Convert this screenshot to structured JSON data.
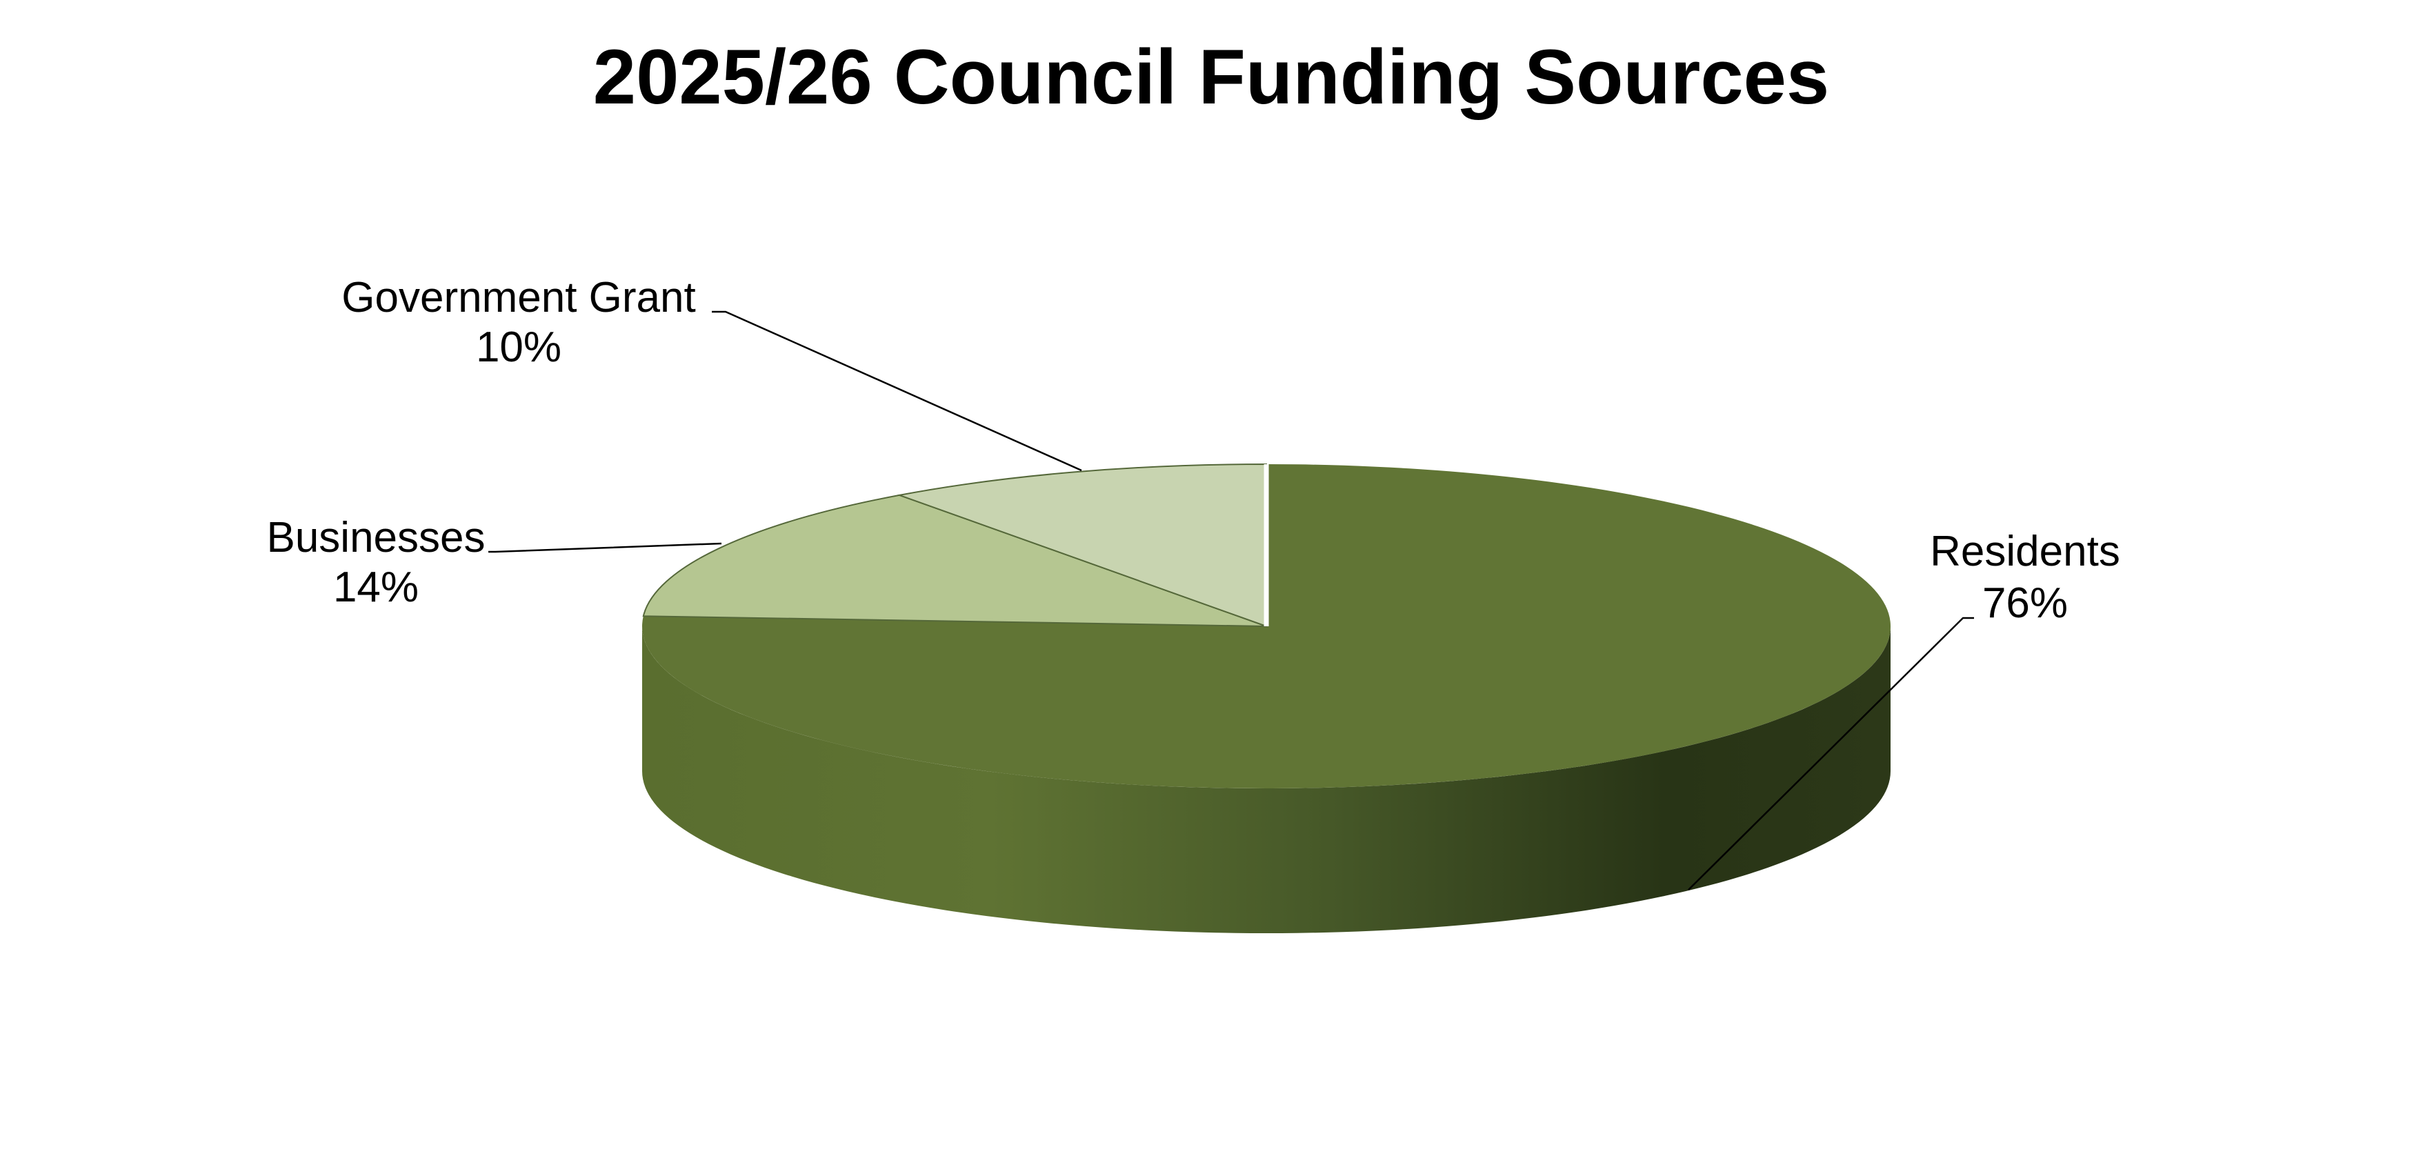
{
  "chart_data": {
    "type": "pie",
    "title": "2025/26 Council Funding Sources",
    "style": "3d",
    "slices": [
      {
        "label": "Residents",
        "value": 76,
        "value_label": "76%",
        "color": "#617535"
      },
      {
        "label": "Businesses",
        "value": 14,
        "value_label": "14%",
        "color": "#b5c691"
      },
      {
        "label": "Government Grant",
        "value": 10,
        "value_label": "10%",
        "color": "#c8d4b0"
      }
    ],
    "legend": "none",
    "data_labels": "outside with leader lines"
  }
}
